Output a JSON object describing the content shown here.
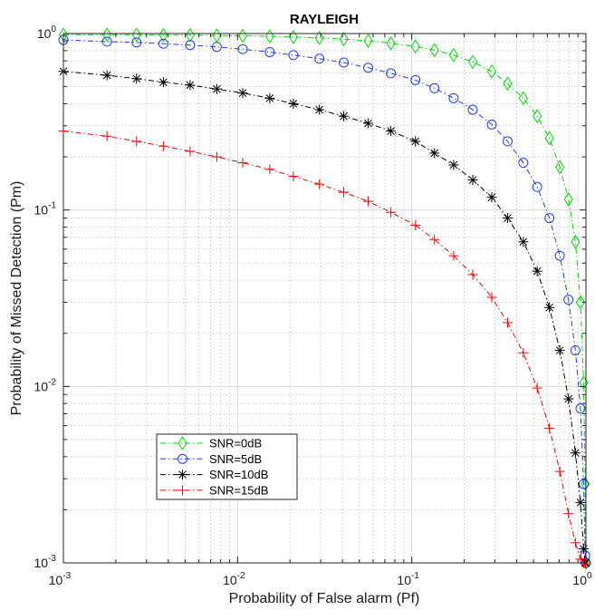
{
  "chart_data": {
    "type": "line",
    "title": "RAYLEIGH",
    "xlabel": "Probability of False alarm (Pf)",
    "ylabel": "Probability of Missed Detection (Pm)",
    "xscale": "log",
    "yscale": "log",
    "xlim": [
      0.001,
      1
    ],
    "ylim": [
      0.001,
      1
    ],
    "grid": true,
    "legend_position": "bottom-left",
    "x": [
      0.001,
      0.00178,
      0.00263,
      0.00375,
      0.00534,
      0.0076,
      0.0107,
      0.0153,
      0.0209,
      0.0295,
      0.0407,
      0.0562,
      0.0759,
      0.105,
      0.135,
      0.174,
      0.224,
      0.288,
      0.355,
      0.437,
      0.525,
      0.617,
      0.708,
      0.794,
      0.87,
      0.93,
      0.97,
      0.99,
      1.0
    ],
    "series": [
      {
        "name": "SNR=0dB",
        "color": "#00dd00",
        "marker": "diamond",
        "values": [
          0.985,
          0.985,
          0.985,
          0.98,
          0.98,
          0.975,
          0.97,
          0.965,
          0.955,
          0.945,
          0.93,
          0.91,
          0.88,
          0.845,
          0.805,
          0.755,
          0.69,
          0.61,
          0.52,
          0.43,
          0.34,
          0.255,
          0.175,
          0.115,
          0.066,
          0.03,
          0.0105,
          0.0028,
          0.001
        ]
      },
      {
        "name": "SNR=5dB",
        "color": "#1f3fff",
        "marker": "circle",
        "values": [
          0.92,
          0.9,
          0.89,
          0.875,
          0.86,
          0.84,
          0.815,
          0.785,
          0.755,
          0.72,
          0.685,
          0.64,
          0.595,
          0.545,
          0.49,
          0.43,
          0.37,
          0.305,
          0.245,
          0.185,
          0.135,
          0.09,
          0.055,
          0.031,
          0.016,
          0.0075,
          0.0028,
          0.0011,
          0.001
        ]
      },
      {
        "name": "SNR=10dB",
        "color": "#000000",
        "marker": "star",
        "values": [
          0.61,
          0.58,
          0.555,
          0.53,
          0.51,
          0.485,
          0.46,
          0.43,
          0.4,
          0.37,
          0.34,
          0.31,
          0.28,
          0.245,
          0.21,
          0.18,
          0.148,
          0.118,
          0.09,
          0.066,
          0.045,
          0.028,
          0.016,
          0.0085,
          0.0042,
          0.0022,
          0.0012,
          0.001,
          0.001
        ]
      },
      {
        "name": "SNR=15dB",
        "color": "#ff0000",
        "marker": "plus",
        "values": [
          0.28,
          0.262,
          0.245,
          0.23,
          0.215,
          0.2,
          0.185,
          0.17,
          0.155,
          0.14,
          0.126,
          0.112,
          0.097,
          0.082,
          0.068,
          0.055,
          0.043,
          0.032,
          0.023,
          0.0155,
          0.0098,
          0.0058,
          0.0033,
          0.0019,
          0.0013,
          0.00105,
          0.001,
          0.001,
          0.001
        ]
      }
    ],
    "ticks": {
      "x": [
        {
          "mant": "10",
          "exp": "-3"
        },
        {
          "mant": "10",
          "exp": "-2"
        },
        {
          "mant": "10",
          "exp": "-1"
        },
        {
          "mant": "10",
          "exp": "0"
        }
      ],
      "y": [
        {
          "mant": "10",
          "exp": "0"
        },
        {
          "mant": "10",
          "exp": "-1"
        },
        {
          "mant": "10",
          "exp": "-2"
        },
        {
          "mant": "10",
          "exp": "-3"
        }
      ]
    }
  }
}
